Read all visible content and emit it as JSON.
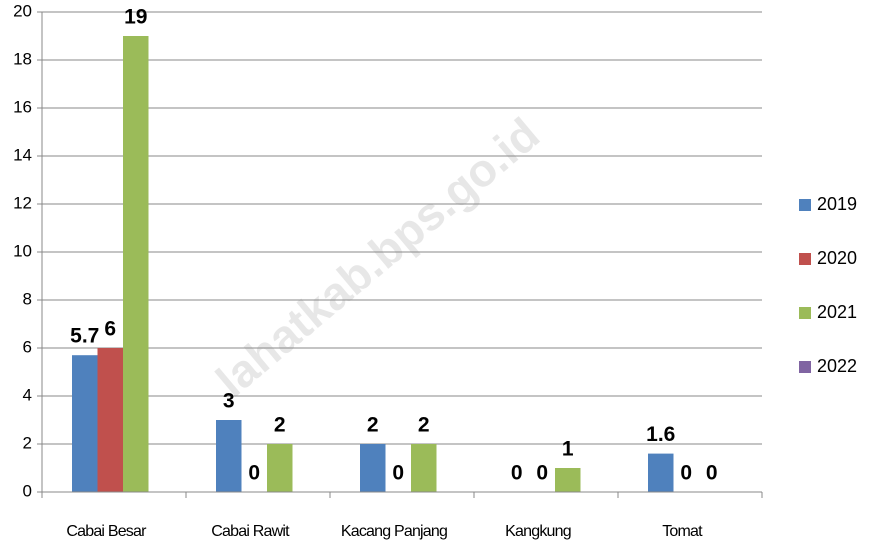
{
  "chart_data": {
    "type": "bar",
    "watermark": "lahatkab.bps.go.id",
    "categories": [
      "Cabai Besar",
      "Cabai Rawit",
      "Kacang Panjang",
      "Kangkung",
      "Tomat"
    ],
    "series": [
      {
        "name": "2019",
        "color": "#4f81bd",
        "values": [
          5.7,
          3,
          2,
          0,
          1.6
        ]
      },
      {
        "name": "2020",
        "color": "#c0504d",
        "values": [
          6,
          0,
          0,
          0,
          0
        ]
      },
      {
        "name": "2021",
        "color": "#9bbb59",
        "values": [
          19,
          2,
          2,
          1,
          0
        ]
      },
      {
        "name": "2022",
        "color": "#8064a2",
        "values": [
          null,
          null,
          null,
          null,
          null
        ]
      }
    ],
    "ylim": [
      0,
      20
    ],
    "yticks": [
      0,
      2,
      4,
      6,
      8,
      10,
      12,
      14,
      16,
      18,
      20
    ],
    "grid": true,
    "legend": "right"
  }
}
